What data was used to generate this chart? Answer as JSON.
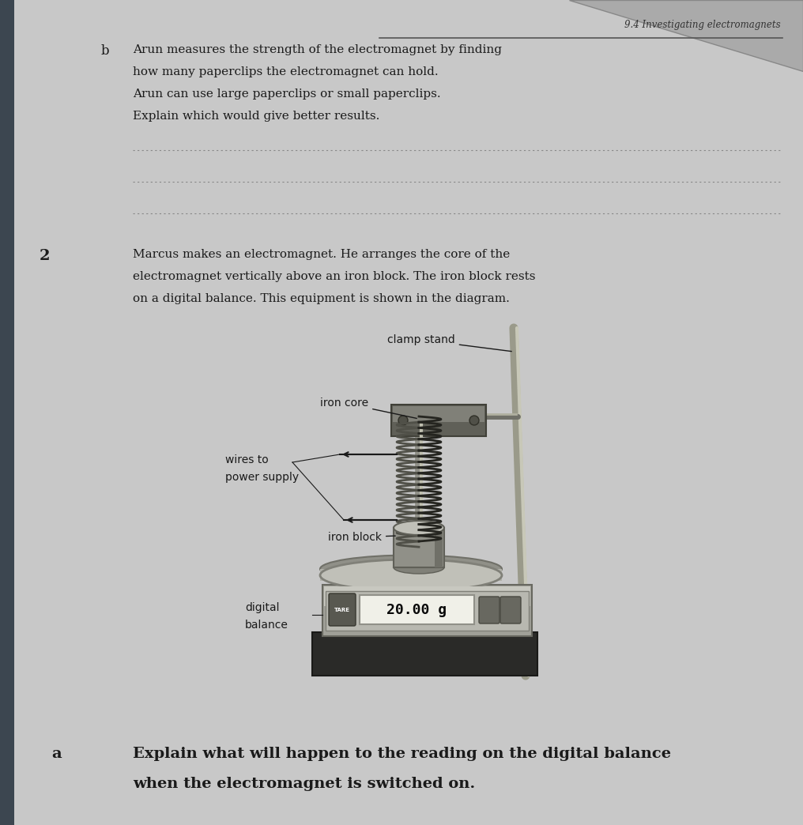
{
  "bg_color": "#b8b8b8",
  "page_bg": "#d0d0d0",
  "title": "9.4 Investigating electromagnets",
  "section_b_label": "b",
  "section_b_text1": "Arun measures the strength of the electromagnet by finding",
  "section_b_text2": "how many paperclips the electromagnet can hold.",
  "section_b_text3": "Arun can use large paperclips or small paperclips.",
  "section_b_text4": "Explain which would give better results.",
  "section_2_label": "2",
  "section_2_text1": "Marcus makes an electromagnet. He arranges the core of the",
  "section_2_text2": "electromagnet vertically above an iron block. The iron block rests",
  "section_2_text3": "on a digital balance. This equipment is shown in the diagram.",
  "label_clamp_stand": "clamp stand",
  "label_iron_core": "iron core",
  "label_wires_to": "wires to",
  "label_power_supply": "power supply",
  "label_iron_block": "iron block",
  "label_digital": "digital",
  "label_balance": "balance",
  "display_reading": "20.00 g",
  "section_a_label": "a",
  "section_a_text1": "Explain what will happen to the reading on the digital balance",
  "section_a_text2": "when the electromagnet is switched on.",
  "text_color": "#1a1a1a",
  "label_color": "#1a1a1a",
  "line_color": "#555555"
}
